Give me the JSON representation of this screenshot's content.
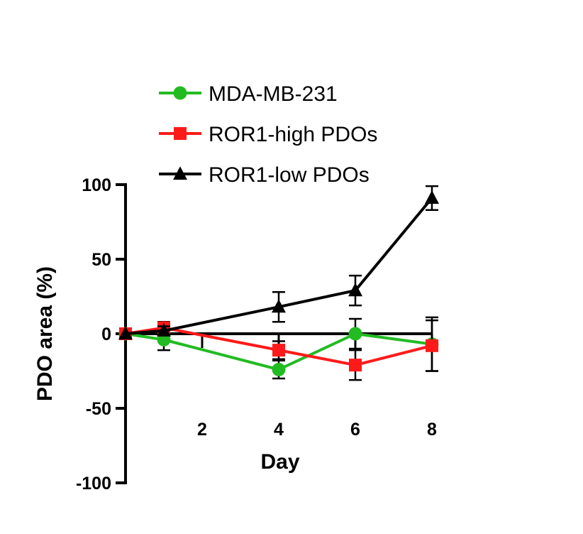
{
  "chart_data": {
    "type": "line",
    "xlabel": "Day",
    "ylabel": "PDO area (%)",
    "xlim": [
      0,
      8
    ],
    "ylim": [
      -100,
      100
    ],
    "x_ticks": [
      2,
      4,
      6,
      8
    ],
    "y_ticks": [
      100,
      50,
      0,
      -50,
      -100
    ],
    "x_tick_labels": [
      "2",
      "4",
      "6",
      "8"
    ],
    "y_tick_labels": [
      "100",
      "50",
      "0",
      "-50",
      "-100"
    ],
    "legend_position": "top",
    "series": [
      {
        "name": "MDA-MB-231",
        "color": "#22bb22",
        "marker": "circle",
        "x": [
          0,
          1,
          4,
          6,
          8
        ],
        "values": [
          0,
          -4,
          -24,
          0,
          -7
        ],
        "error": [
          0,
          7,
          6,
          10,
          18
        ]
      },
      {
        "name": "ROR1-high PDOs",
        "color": "#ff1a1a",
        "marker": "square",
        "x": [
          0,
          1,
          4,
          6,
          8
        ],
        "values": [
          0,
          4,
          -11,
          -21,
          -8
        ],
        "error": [
          0,
          4,
          6,
          10,
          17
        ]
      },
      {
        "name": "ROR1-low PDOs",
        "color": "#000000",
        "marker": "triangle",
        "x": [
          0,
          1,
          4,
          6,
          8
        ],
        "values": [
          0,
          2,
          18,
          29,
          91
        ],
        "error": [
          0,
          3,
          10,
          10,
          8
        ]
      }
    ]
  }
}
